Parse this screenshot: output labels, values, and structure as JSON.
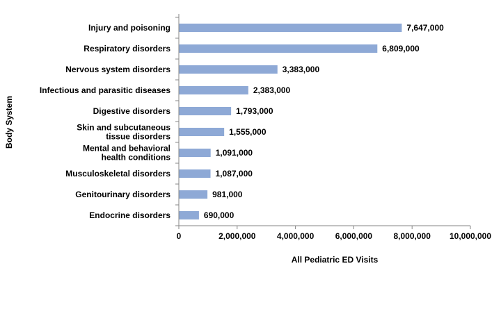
{
  "chart_data": {
    "type": "bar",
    "orientation": "horizontal",
    "categories": [
      [
        "Injury and poisoning"
      ],
      [
        "Respiratory disorders"
      ],
      [
        "Nervous system disorders"
      ],
      [
        "Infectious and parasitic diseases"
      ],
      [
        "Digestive disorders"
      ],
      [
        "Skin and subcutaneous",
        "tissue disorders"
      ],
      [
        "Mental and behavioral",
        "health conditions"
      ],
      [
        "Musculoskeletal disorders"
      ],
      [
        "Genitourinary disorders"
      ],
      [
        "Endocrine disorders"
      ]
    ],
    "values": [
      7647000,
      6809000,
      3383000,
      2383000,
      1793000,
      1555000,
      1091000,
      1087000,
      981000,
      690000
    ],
    "data_labels": [
      "7,647,000",
      "6,809,000",
      "3,383,000",
      "2,383,000",
      "1,793,000",
      "1,555,000",
      "1,091,000",
      "1,087,000",
      "981,000",
      "690,000"
    ],
    "xlabel": "All Pediatric ED Visits",
    "ylabel": "Body System",
    "xlim": [
      0,
      10000000
    ],
    "xticks": [
      0,
      2000000,
      4000000,
      6000000,
      8000000,
      10000000
    ],
    "xtick_labels": [
      "0",
      "2,000,000",
      "4,000,000",
      "6,000,000",
      "8,000,000",
      "10,000,000"
    ],
    "grid": false,
    "legend": "none",
    "bar_color": "#8EA9D6",
    "axis_color": "#868686"
  }
}
